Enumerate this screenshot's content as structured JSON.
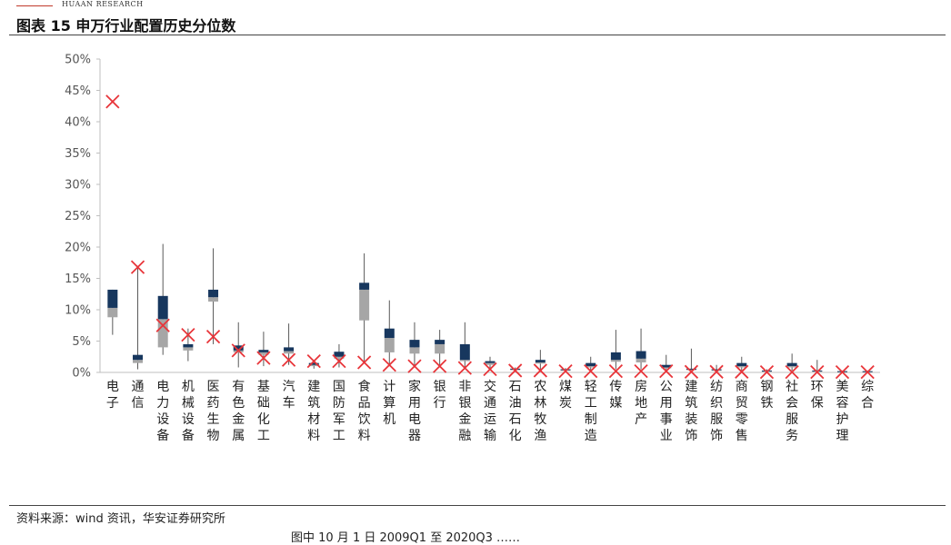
{
  "header": {
    "brand": "HUAAN RESEARCH",
    "title": "图表 15 申万行业配置历史分位数"
  },
  "footer": {
    "source": "资料来源：wind 资讯，华安证券研究所",
    "partial_note": "图中 10 月 1 日 2009Q1 至 2020Q3 ……"
  },
  "chart_data": {
    "type": "box",
    "ylim": [
      0,
      50
    ],
    "yticks": [
      "0%",
      "5%",
      "10%",
      "15%",
      "20%",
      "25%",
      "30%",
      "35%",
      "40%",
      "45%",
      "50%"
    ],
    "grid": false,
    "categories": [
      "电子",
      "通信",
      "电力设备",
      "机械设备",
      "医药生物",
      "有色金属",
      "基础化工",
      "汽车",
      "建筑材料",
      "国防军工",
      "食品饮料",
      "计算机",
      "家用电器",
      "银行",
      "非银金融",
      "交通运输",
      "石油石化",
      "农林牧渔",
      "煤炭",
      "轻工制造",
      "传媒",
      "房地产",
      "公用事业",
      "建筑装饰",
      "纺织服饰",
      "商贸零售",
      "钢铁",
      "社会服务",
      "环保",
      "美容护理",
      "综合"
    ],
    "min": [
      6.0,
      0.5,
      2.8,
      1.8,
      4.5,
      0.8,
      1.0,
      1.2,
      0.6,
      0.8,
      1.5,
      1.0,
      1.0,
      1.0,
      0.5,
      0.3,
      0.2,
      0.3,
      0.1,
      0.2,
      0.5,
      0.5,
      0.3,
      0.3,
      0.2,
      0.3,
      0.1,
      0.3,
      0.1,
      0.0,
      0.0
    ],
    "p25": [
      8.8,
      1.5,
      4.0,
      3.5,
      11.3,
      3.2,
      2.8,
      3.0,
      1.0,
      2.2,
      8.3,
      3.2,
      3.0,
      3.0,
      1.8,
      1.2,
      0.4,
      1.4,
      0.3,
      0.8,
      1.7,
      1.6,
      0.7,
      0.4,
      0.3,
      0.8,
      0.2,
      0.8,
      0.2,
      0.1,
      0.1
    ],
    "median": [
      10.3,
      2.0,
      8.5,
      4.0,
      12.0,
      3.5,
      3.2,
      3.4,
      1.2,
      2.5,
      13.2,
      5.5,
      4.0,
      4.5,
      2.0,
      1.5,
      0.5,
      1.6,
      0.4,
      1.0,
      2.0,
      2.2,
      0.8,
      0.5,
      0.4,
      1.0,
      0.25,
      1.0,
      0.25,
      0.15,
      0.15
    ],
    "p75": [
      13.2,
      2.8,
      12.2,
      4.5,
      13.2,
      4.3,
      3.6,
      4.0,
      1.5,
      3.3,
      14.3,
      7.0,
      5.2,
      5.2,
      4.5,
      1.8,
      0.6,
      2.0,
      0.5,
      1.5,
      3.2,
      3.4,
      1.2,
      0.6,
      0.5,
      1.5,
      0.3,
      1.5,
      0.3,
      0.2,
      0.2
    ],
    "max": [
      13.2,
      17.0,
      20.5,
      7.0,
      19.8,
      8.0,
      6.5,
      7.8,
      2.0,
      4.5,
      19.0,
      11.5,
      8.0,
      6.8,
      8.0,
      2.5,
      0.8,
      3.6,
      0.7,
      2.5,
      6.8,
      7.0,
      2.8,
      3.8,
      1.2,
      2.5,
      0.5,
      3.0,
      2.0,
      0.3,
      0.3
    ],
    "current": [
      43.2,
      16.8,
      7.5,
      6.0,
      5.7,
      3.5,
      2.3,
      2.0,
      1.8,
      1.8,
      1.6,
      1.2,
      1.0,
      1.0,
      0.7,
      0.5,
      0.3,
      0.3,
      0.2,
      0.2,
      0.2,
      0.2,
      0.2,
      0.1,
      0.1,
      0.1,
      0.05,
      0.05,
      0.05,
      0.05,
      0.05
    ],
    "colors": {
      "box_lower": "#a6a6a6",
      "box_upper": "#17375e",
      "whisker": "#595959",
      "current_marker": "#e8353a",
      "axis": "#bfbfbf"
    }
  }
}
